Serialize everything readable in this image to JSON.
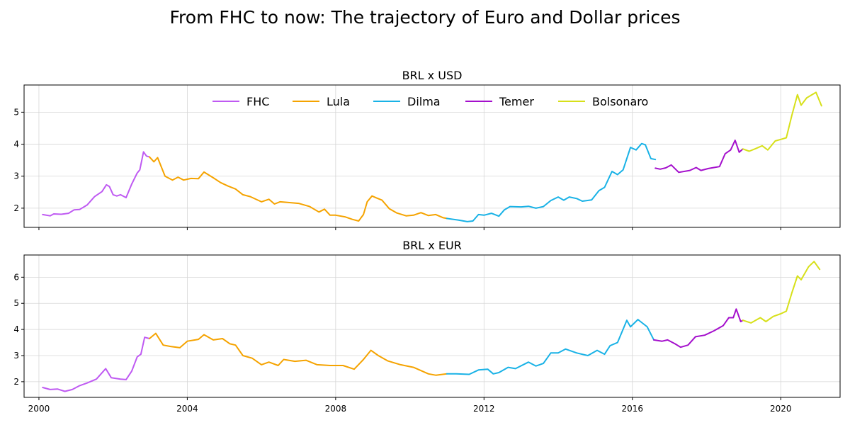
{
  "figure": {
    "title": "From FHC to now: The trajectory of Euro and Dollar prices"
  },
  "legend": {
    "placement": "top-center (top panel)",
    "entries": [
      {
        "name": "FHC",
        "color": "#bf5af2"
      },
      {
        "name": "Lula",
        "color": "#f5a300"
      },
      {
        "name": "Dilma",
        "color": "#19b2e6"
      },
      {
        "name": "Temer",
        "color": "#a40fcc"
      },
      {
        "name": "Bolsonaro",
        "color": "#d7e01a"
      }
    ]
  },
  "x_axis": {
    "type": "time",
    "xlim": [
      1999.6,
      2021.6
    ],
    "ticks": [
      2000,
      2004,
      2008,
      2012,
      2016,
      2020
    ],
    "tick_labels": [
      "2000",
      "2004",
      "2008",
      "2012",
      "2016",
      "2020"
    ]
  },
  "chart_data": [
    {
      "type": "line",
      "title": "BRL x USD",
      "xlabel": "",
      "ylabel": "",
      "ylim": [
        1.4,
        5.85
      ],
      "yticks": [
        2,
        3,
        4,
        5
      ],
      "grid": true,
      "series": [
        {
          "name": "FHC",
          "color": "#bf5af2",
          "points": [
            [
              2000.1,
              1.8
            ],
            [
              2000.3,
              1.76
            ],
            [
              2000.4,
              1.82
            ],
            [
              2000.6,
              1.81
            ],
            [
              2000.8,
              1.84
            ],
            [
              2000.95,
              1.95
            ],
            [
              2001.1,
              1.96
            ],
            [
              2001.3,
              2.1
            ],
            [
              2001.5,
              2.36
            ],
            [
              2001.7,
              2.52
            ],
            [
              2001.82,
              2.73
            ],
            [
              2001.9,
              2.68
            ],
            [
              2002.0,
              2.42
            ],
            [
              2002.1,
              2.38
            ],
            [
              2002.2,
              2.42
            ],
            [
              2002.35,
              2.33
            ],
            [
              2002.5,
              2.75
            ],
            [
              2002.65,
              3.1
            ],
            [
              2002.72,
              3.2
            ],
            [
              2002.82,
              3.76
            ],
            [
              2002.9,
              3.63
            ],
            [
              2002.98,
              3.6
            ]
          ]
        },
        {
          "name": "Lula",
          "color": "#f5a300",
          "points": [
            [
              2002.98,
              3.6
            ],
            [
              2003.1,
              3.45
            ],
            [
              2003.2,
              3.58
            ],
            [
              2003.4,
              3.0
            ],
            [
              2003.6,
              2.88
            ],
            [
              2003.75,
              2.97
            ],
            [
              2003.9,
              2.88
            ],
            [
              2004.1,
              2.93
            ],
            [
              2004.3,
              2.92
            ],
            [
              2004.45,
              3.13
            ],
            [
              2004.7,
              2.95
            ],
            [
              2004.9,
              2.8
            ],
            [
              2005.1,
              2.69
            ],
            [
              2005.3,
              2.6
            ],
            [
              2005.5,
              2.42
            ],
            [
              2005.7,
              2.36
            ],
            [
              2006.0,
              2.2
            ],
            [
              2006.2,
              2.28
            ],
            [
              2006.35,
              2.13
            ],
            [
              2006.5,
              2.2
            ],
            [
              2006.7,
              2.18
            ],
            [
              2007.0,
              2.15
            ],
            [
              2007.3,
              2.05
            ],
            [
              2007.55,
              1.88
            ],
            [
              2007.7,
              1.97
            ],
            [
              2007.85,
              1.78
            ],
            [
              2008.0,
              1.78
            ],
            [
              2008.25,
              1.73
            ],
            [
              2008.45,
              1.65
            ],
            [
              2008.62,
              1.6
            ],
            [
              2008.75,
              1.8
            ],
            [
              2008.85,
              2.2
            ],
            [
              2008.98,
              2.38
            ],
            [
              2009.1,
              2.32
            ],
            [
              2009.25,
              2.25
            ],
            [
              2009.45,
              1.98
            ],
            [
              2009.65,
              1.85
            ],
            [
              2009.9,
              1.76
            ],
            [
              2010.1,
              1.78
            ],
            [
              2010.3,
              1.86
            ],
            [
              2010.5,
              1.77
            ],
            [
              2010.7,
              1.8
            ],
            [
              2010.9,
              1.7
            ],
            [
              2011.0,
              1.68
            ]
          ]
        },
        {
          "name": "Dilma",
          "color": "#19b2e6",
          "points": [
            [
              2011.0,
              1.68
            ],
            [
              2011.3,
              1.63
            ],
            [
              2011.55,
              1.58
            ],
            [
              2011.7,
              1.6
            ],
            [
              2011.85,
              1.8
            ],
            [
              2012.0,
              1.78
            ],
            [
              2012.2,
              1.84
            ],
            [
              2012.4,
              1.75
            ],
            [
              2012.55,
              1.95
            ],
            [
              2012.7,
              2.05
            ],
            [
              2013.0,
              2.04
            ],
            [
              2013.2,
              2.06
            ],
            [
              2013.4,
              2.0
            ],
            [
              2013.6,
              2.05
            ],
            [
              2013.8,
              2.24
            ],
            [
              2014.0,
              2.35
            ],
            [
              2014.15,
              2.25
            ],
            [
              2014.3,
              2.35
            ],
            [
              2014.5,
              2.3
            ],
            [
              2014.65,
              2.22
            ],
            [
              2014.9,
              2.26
            ],
            [
              2015.1,
              2.55
            ],
            [
              2015.25,
              2.65
            ],
            [
              2015.45,
              3.15
            ],
            [
              2015.6,
              3.05
            ],
            [
              2015.75,
              3.2
            ],
            [
              2015.95,
              3.9
            ],
            [
              2016.1,
              3.82
            ],
            [
              2016.25,
              4.02
            ],
            [
              2016.35,
              3.98
            ],
            [
              2016.5,
              3.55
            ],
            [
              2016.62,
              3.52
            ]
          ]
        },
        {
          "name": "Temer",
          "color": "#a40fcc",
          "points": [
            [
              2016.62,
              3.25
            ],
            [
              2016.75,
              3.22
            ],
            [
              2016.9,
              3.26
            ],
            [
              2017.05,
              3.35
            ],
            [
              2017.25,
              3.12
            ],
            [
              2017.55,
              3.18
            ],
            [
              2017.72,
              3.27
            ],
            [
              2017.85,
              3.18
            ],
            [
              2018.05,
              3.24
            ],
            [
              2018.2,
              3.27
            ],
            [
              2018.35,
              3.3
            ],
            [
              2018.5,
              3.7
            ],
            [
              2018.65,
              3.82
            ],
            [
              2018.77,
              4.12
            ],
            [
              2018.88,
              3.75
            ],
            [
              2018.98,
              3.85
            ]
          ]
        },
        {
          "name": "Bolsonaro",
          "color": "#d7e01a",
          "points": [
            [
              2018.98,
              3.85
            ],
            [
              2019.15,
              3.78
            ],
            [
              2019.3,
              3.85
            ],
            [
              2019.5,
              3.95
            ],
            [
              2019.65,
              3.82
            ],
            [
              2019.85,
              4.1
            ],
            [
              2020.0,
              4.15
            ],
            [
              2020.15,
              4.2
            ],
            [
              2020.3,
              4.9
            ],
            [
              2020.45,
              5.55
            ],
            [
              2020.55,
              5.22
            ],
            [
              2020.7,
              5.45
            ],
            [
              2020.95,
              5.62
            ],
            [
              2021.1,
              5.2
            ]
          ]
        }
      ]
    },
    {
      "type": "line",
      "title": "BRL x EUR",
      "xlabel": "",
      "ylabel": "",
      "ylim": [
        1.4,
        6.85
      ],
      "yticks": [
        2,
        3,
        4,
        5,
        6
      ],
      "grid": true,
      "series": [
        {
          "name": "FHC",
          "color": "#bf5af2",
          "points": [
            [
              2000.1,
              1.78
            ],
            [
              2000.3,
              1.7
            ],
            [
              2000.5,
              1.72
            ],
            [
              2000.7,
              1.63
            ],
            [
              2000.9,
              1.7
            ],
            [
              2001.1,
              1.85
            ],
            [
              2001.3,
              1.95
            ],
            [
              2001.55,
              2.1
            ],
            [
              2001.8,
              2.5
            ],
            [
              2001.95,
              2.15
            ],
            [
              2002.2,
              2.1
            ],
            [
              2002.35,
              2.08
            ],
            [
              2002.5,
              2.4
            ],
            [
              2002.65,
              2.95
            ],
            [
              2002.75,
              3.05
            ],
            [
              2002.85,
              3.7
            ],
            [
              2002.98,
              3.65
            ]
          ]
        },
        {
          "name": "Lula",
          "color": "#f5a300",
          "points": [
            [
              2002.98,
              3.65
            ],
            [
              2003.15,
              3.85
            ],
            [
              2003.35,
              3.4
            ],
            [
              2003.55,
              3.35
            ],
            [
              2003.8,
              3.3
            ],
            [
              2004.0,
              3.55
            ],
            [
              2004.3,
              3.62
            ],
            [
              2004.45,
              3.8
            ],
            [
              2004.7,
              3.6
            ],
            [
              2004.95,
              3.65
            ],
            [
              2005.15,
              3.45
            ],
            [
              2005.3,
              3.4
            ],
            [
              2005.5,
              3.0
            ],
            [
              2005.75,
              2.9
            ],
            [
              2006.0,
              2.65
            ],
            [
              2006.2,
              2.75
            ],
            [
              2006.45,
              2.62
            ],
            [
              2006.6,
              2.85
            ],
            [
              2006.9,
              2.78
            ],
            [
              2007.2,
              2.82
            ],
            [
              2007.5,
              2.65
            ],
            [
              2007.85,
              2.62
            ],
            [
              2008.2,
              2.62
            ],
            [
              2008.5,
              2.48
            ],
            [
              2008.75,
              2.85
            ],
            [
              2008.95,
              3.2
            ],
            [
              2009.15,
              3.0
            ],
            [
              2009.4,
              2.8
            ],
            [
              2009.75,
              2.65
            ],
            [
              2010.1,
              2.55
            ],
            [
              2010.5,
              2.3
            ],
            [
              2010.7,
              2.25
            ],
            [
              2011.0,
              2.3
            ]
          ]
        },
        {
          "name": "Dilma",
          "color": "#19b2e6",
          "points": [
            [
              2011.0,
              2.3
            ],
            [
              2011.25,
              2.3
            ],
            [
              2011.6,
              2.28
            ],
            [
              2011.85,
              2.45
            ],
            [
              2012.1,
              2.48
            ],
            [
              2012.25,
              2.3
            ],
            [
              2012.4,
              2.35
            ],
            [
              2012.65,
              2.55
            ],
            [
              2012.85,
              2.5
            ],
            [
              2013.2,
              2.75
            ],
            [
              2013.4,
              2.6
            ],
            [
              2013.6,
              2.7
            ],
            [
              2013.8,
              3.1
            ],
            [
              2014.0,
              3.1
            ],
            [
              2014.2,
              3.25
            ],
            [
              2014.5,
              3.1
            ],
            [
              2014.8,
              3.0
            ],
            [
              2015.05,
              3.2
            ],
            [
              2015.25,
              3.05
            ],
            [
              2015.4,
              3.38
            ],
            [
              2015.6,
              3.5
            ],
            [
              2015.85,
              4.35
            ],
            [
              2015.95,
              4.1
            ],
            [
              2016.15,
              4.38
            ],
            [
              2016.4,
              4.1
            ],
            [
              2016.58,
              3.6
            ]
          ]
        },
        {
          "name": "Temer",
          "color": "#a40fcc",
          "points": [
            [
              2016.58,
              3.6
            ],
            [
              2016.8,
              3.55
            ],
            [
              2016.95,
              3.6
            ],
            [
              2017.15,
              3.45
            ],
            [
              2017.3,
              3.32
            ],
            [
              2017.5,
              3.4
            ],
            [
              2017.7,
              3.72
            ],
            [
              2017.95,
              3.78
            ],
            [
              2018.2,
              3.95
            ],
            [
              2018.45,
              4.15
            ],
            [
              2018.6,
              4.45
            ],
            [
              2018.72,
              4.45
            ],
            [
              2018.8,
              4.78
            ],
            [
              2018.92,
              4.3
            ],
            [
              2018.98,
              4.35
            ]
          ]
        },
        {
          "name": "Bolsonaro",
          "color": "#d7e01a",
          "points": [
            [
              2018.98,
              4.35
            ],
            [
              2019.2,
              4.25
            ],
            [
              2019.45,
              4.45
            ],
            [
              2019.6,
              4.3
            ],
            [
              2019.8,
              4.5
            ],
            [
              2020.0,
              4.6
            ],
            [
              2020.15,
              4.7
            ],
            [
              2020.3,
              5.4
            ],
            [
              2020.45,
              6.05
            ],
            [
              2020.55,
              5.9
            ],
            [
              2020.75,
              6.4
            ],
            [
              2020.9,
              6.6
            ],
            [
              2021.05,
              6.3
            ]
          ]
        }
      ]
    }
  ]
}
